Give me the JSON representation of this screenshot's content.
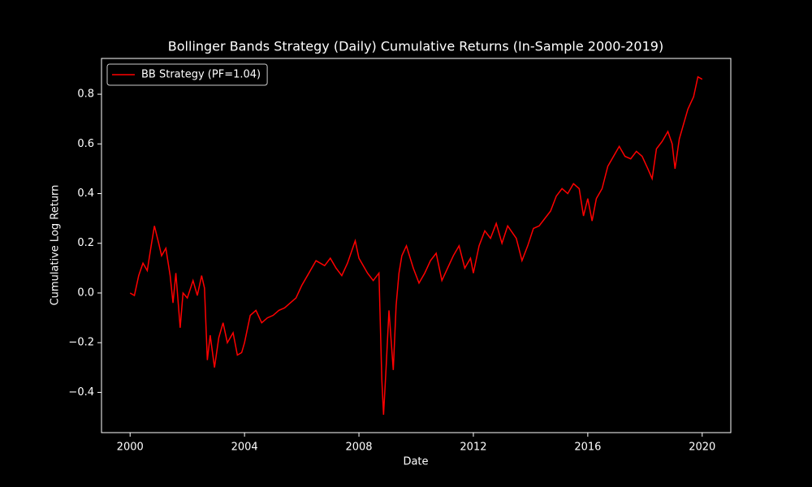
{
  "chart_data": {
    "type": "line",
    "title": "Bollinger Bands Strategy (Daily) Cumulative Returns (In-Sample 2000-2019)",
    "x_label": "Date",
    "y_label": "Cumulative Log Return",
    "xlim": [
      1999,
      2021
    ],
    "xticks": [
      2000,
      2004,
      2008,
      2012,
      2016,
      2020
    ],
    "ylim": [
      -0.562,
      0.944
    ],
    "yticks": [
      {
        "value": -0.4,
        "label": "−0.4"
      },
      {
        "value": -0.2,
        "label": "−0.2"
      },
      {
        "value": 0,
        "label": "0.0"
      },
      {
        "value": 0.2,
        "label": "0.2"
      },
      {
        "value": 0.4,
        "label": "0.4"
      },
      {
        "value": 0.6,
        "label": "0.6"
      },
      {
        "value": 0.8,
        "label": "0.8"
      }
    ],
    "legend": "upper left",
    "x": [
      2000.0,
      2000.15,
      2000.3,
      2000.45,
      2000.6,
      2000.75,
      2000.85,
      2001.0,
      2001.1,
      2001.25,
      2001.4,
      2001.5,
      2001.6,
      2001.75,
      2001.85,
      2002.0,
      2002.2,
      2002.35,
      2002.5,
      2002.6,
      2002.7,
      2002.8,
      2002.95,
      2003.1,
      2003.25,
      2003.4,
      2003.6,
      2003.75,
      2003.9,
      2004.0,
      2004.2,
      2004.4,
      2004.6,
      2004.8,
      2005.0,
      2005.2,
      2005.4,
      2005.6,
      2005.8,
      2006.0,
      2006.3,
      2006.5,
      2006.8,
      2007.0,
      2007.2,
      2007.4,
      2007.6,
      2007.87,
      2008.0,
      2008.3,
      2008.5,
      2008.7,
      2008.8,
      2008.86,
      2008.95,
      2009.05,
      2009.2,
      2009.3,
      2009.4,
      2009.5,
      2009.66,
      2009.9,
      2010.1,
      2010.3,
      2010.5,
      2010.7,
      2010.9,
      2011.1,
      2011.3,
      2011.5,
      2011.7,
      2011.9,
      2012.0,
      2012.2,
      2012.4,
      2012.6,
      2012.8,
      2013.0,
      2013.2,
      2013.5,
      2013.7,
      2013.9,
      2014.1,
      2014.3,
      2014.5,
      2014.7,
      2014.9,
      2015.1,
      2015.3,
      2015.5,
      2015.7,
      2015.85,
      2016.0,
      2016.15,
      2016.3,
      2016.5,
      2016.7,
      2016.9,
      2017.1,
      2017.3,
      2017.5,
      2017.7,
      2017.9,
      2018.1,
      2018.25,
      2018.4,
      2018.6,
      2018.8,
      2018.95,
      2019.05,
      2019.2,
      2019.35,
      2019.5,
      2019.7,
      2019.85,
      2020.0
    ],
    "series": [
      {
        "name": "BB Strategy (PF=1.04)",
        "color": "#ff0000",
        "values": [
          0.0,
          -0.01,
          0.07,
          0.12,
          0.09,
          0.2,
          0.27,
          0.2,
          0.15,
          0.18,
          0.07,
          -0.04,
          0.08,
          -0.14,
          0.0,
          -0.02,
          0.05,
          -0.01,
          0.07,
          0.02,
          -0.27,
          -0.17,
          -0.3,
          -0.18,
          -0.12,
          -0.2,
          -0.16,
          -0.25,
          -0.24,
          -0.2,
          -0.09,
          -0.07,
          -0.12,
          -0.1,
          -0.09,
          -0.07,
          -0.06,
          -0.04,
          -0.02,
          0.03,
          0.09,
          0.13,
          0.11,
          0.14,
          0.1,
          0.07,
          0.12,
          0.21,
          0.14,
          0.08,
          0.05,
          0.08,
          -0.35,
          -0.49,
          -0.3,
          -0.07,
          -0.31,
          -0.05,
          0.08,
          0.15,
          0.19,
          0.1,
          0.04,
          0.08,
          0.13,
          0.16,
          0.05,
          0.1,
          0.15,
          0.19,
          0.1,
          0.14,
          0.08,
          0.19,
          0.25,
          0.22,
          0.28,
          0.2,
          0.27,
          0.22,
          0.13,
          0.19,
          0.26,
          0.27,
          0.3,
          0.33,
          0.39,
          0.42,
          0.4,
          0.44,
          0.42,
          0.31,
          0.38,
          0.29,
          0.38,
          0.42,
          0.51,
          0.55,
          0.59,
          0.55,
          0.54,
          0.57,
          0.55,
          0.5,
          0.46,
          0.58,
          0.61,
          0.65,
          0.6,
          0.5,
          0.62,
          0.68,
          0.74,
          0.79,
          0.87,
          0.86
        ]
      }
    ]
  }
}
